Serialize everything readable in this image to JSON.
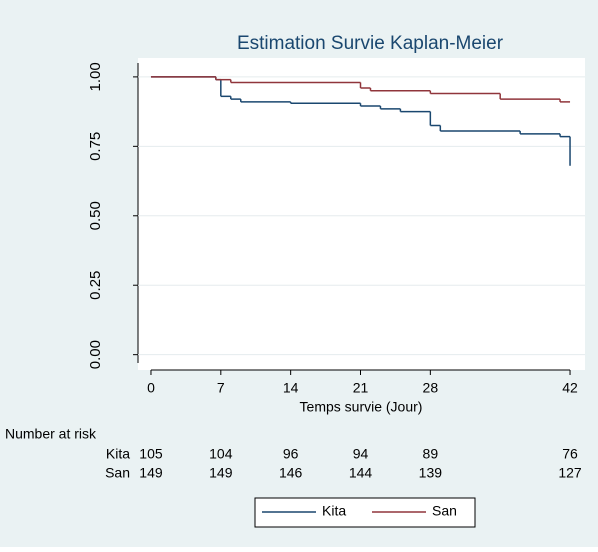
{
  "chart_data": {
    "type": "step",
    "title": "Estimation Survie Kaplan-Meier",
    "x_label": "Temps survie (Jour)",
    "xlim": [
      -1.3,
      43.5
    ],
    "xticks": [
      0,
      7,
      14,
      21,
      28,
      42
    ],
    "ylim": [
      -0.03,
      1.05
    ],
    "yticks": [
      {
        "value": 0,
        "label": "0.00"
      },
      {
        "value": 0.25,
        "label": "0.25"
      },
      {
        "value": 0.5,
        "label": "0.50"
      },
      {
        "value": 0.75,
        "label": "0.75"
      },
      {
        "value": 1,
        "label": "1.00"
      }
    ],
    "grid": true,
    "series": [
      {
        "name": "Kita",
        "color": "#1a476f",
        "x": [
          0,
          6.5,
          7,
          8,
          9,
          14,
          21,
          23,
          25,
          28,
          29,
          37,
          41,
          42
        ],
        "values": [
          1.0,
          0.99,
          0.93,
          0.92,
          0.91,
          0.905,
          0.895,
          0.885,
          0.875,
          0.825,
          0.805,
          0.795,
          0.785,
          0.68
        ]
      },
      {
        "name": "San",
        "color": "#90353b",
        "x": [
          0,
          6.5,
          8,
          21,
          22,
          28,
          35,
          41,
          42
        ],
        "values": [
          1.0,
          0.99,
          0.98,
          0.96,
          0.95,
          0.94,
          0.92,
          0.91,
          0.91
        ]
      }
    ],
    "risk_table": {
      "title": "Number at risk",
      "rows": [
        {
          "name": "Kita",
          "values": [
            105,
            104,
            96,
            94,
            89,
            76
          ]
        },
        {
          "name": "San",
          "values": [
            149,
            149,
            146,
            144,
            139,
            127
          ]
        }
      ]
    }
  }
}
